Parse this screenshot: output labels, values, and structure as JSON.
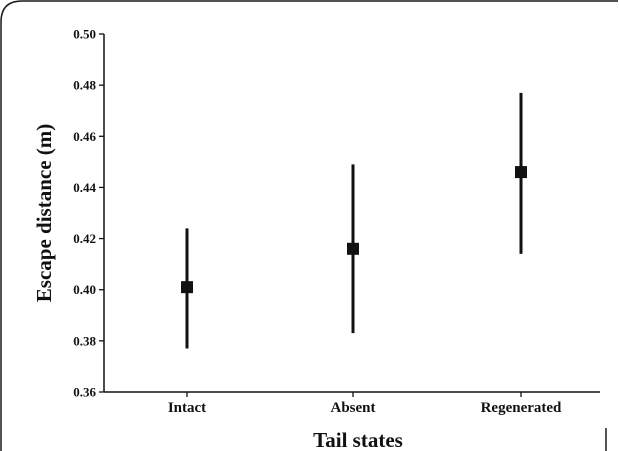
{
  "chart_data": {
    "type": "scatter",
    "title": "",
    "xlabel": "Tail states",
    "ylabel": "Escape distance (m)",
    "categories": [
      "Intact",
      "Absent",
      "Regenerated"
    ],
    "series": [
      {
        "values": [
          0.401,
          0.416,
          0.446
        ],
        "error_low": [
          0.377,
          0.383,
          0.414
        ],
        "error_high": [
          0.424,
          0.449,
          0.477
        ]
      }
    ],
    "ylim": [
      0.36,
      0.5
    ],
    "yticks": [
      "0.36",
      "0.38",
      "0.40",
      "0.42",
      "0.44",
      "0.46",
      "0.48",
      "0.50"
    ],
    "grid": false,
    "marker": "square",
    "color": "#111111"
  }
}
